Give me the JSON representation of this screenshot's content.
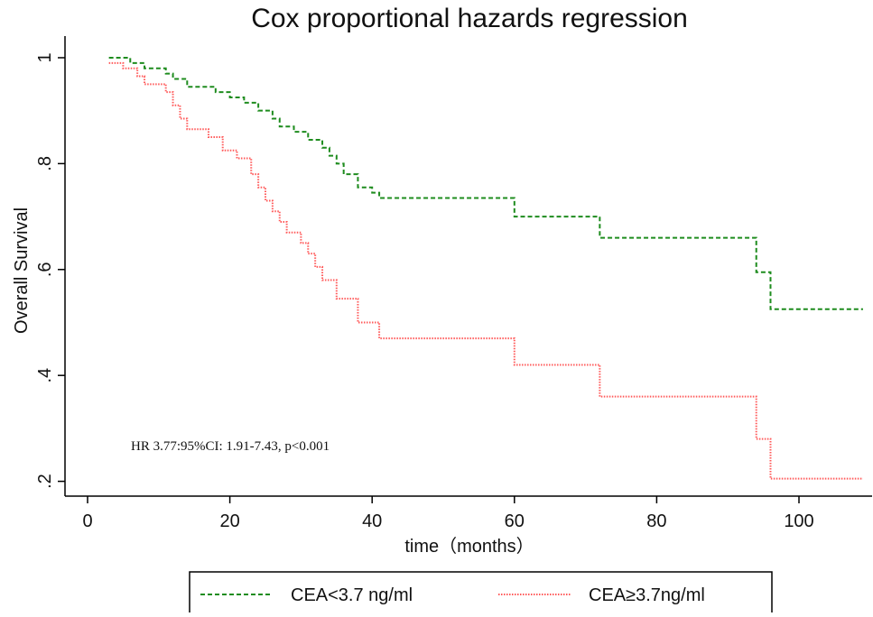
{
  "chart_data": {
    "type": "step",
    "title": "Cox proportional hazards regression",
    "x_label": "time（months）",
    "y_label": "Overall Survival",
    "annotation": "HR 3.77:95%CI: 1.91-7.43, p<0.001",
    "xlim": [
      0,
      110
    ],
    "ylim": [
      0.17,
      1.04
    ],
    "xticks": [
      0,
      20,
      40,
      60,
      80,
      100
    ],
    "yticks": [
      {
        "value": 0.2,
        "label": ".2"
      },
      {
        "value": 0.4,
        "label": ".4"
      },
      {
        "value": 0.6,
        "label": ".6"
      },
      {
        "value": 0.8,
        "label": ".8"
      },
      1
    ],
    "series": [
      {
        "name": "CEA<3.7 ng/ml",
        "color": "#1e8c1e",
        "dash": "5 3",
        "x": [
          3,
          6,
          8,
          11,
          12,
          14,
          18,
          20,
          22,
          24,
          26,
          27,
          29,
          31,
          33,
          34,
          35,
          36,
          38,
          40,
          41,
          60,
          72,
          94,
          96,
          109
        ],
        "values": [
          1.0,
          0.99,
          0.98,
          0.97,
          0.96,
          0.945,
          0.935,
          0.925,
          0.915,
          0.9,
          0.885,
          0.87,
          0.86,
          0.845,
          0.83,
          0.815,
          0.8,
          0.78,
          0.755,
          0.745,
          0.735,
          0.7,
          0.66,
          0.595,
          0.525,
          0.525
        ]
      },
      {
        "name": "CEA≥3.7ng/ml",
        "color": "#ff5a5a",
        "dash": "1.5 1.5",
        "x": [
          3,
          5,
          7,
          8,
          11,
          12,
          13,
          14,
          17,
          19,
          21,
          23,
          24,
          25,
          26,
          27,
          28,
          30,
          31,
          32,
          33,
          35,
          38,
          41,
          60,
          72,
          94,
          96,
          109
        ],
        "values": [
          0.99,
          0.98,
          0.965,
          0.95,
          0.935,
          0.91,
          0.885,
          0.865,
          0.85,
          0.825,
          0.81,
          0.78,
          0.755,
          0.73,
          0.71,
          0.69,
          0.67,
          0.65,
          0.63,
          0.605,
          0.58,
          0.545,
          0.5,
          0.47,
          0.42,
          0.36,
          0.28,
          0.205,
          0.205
        ]
      }
    ]
  }
}
